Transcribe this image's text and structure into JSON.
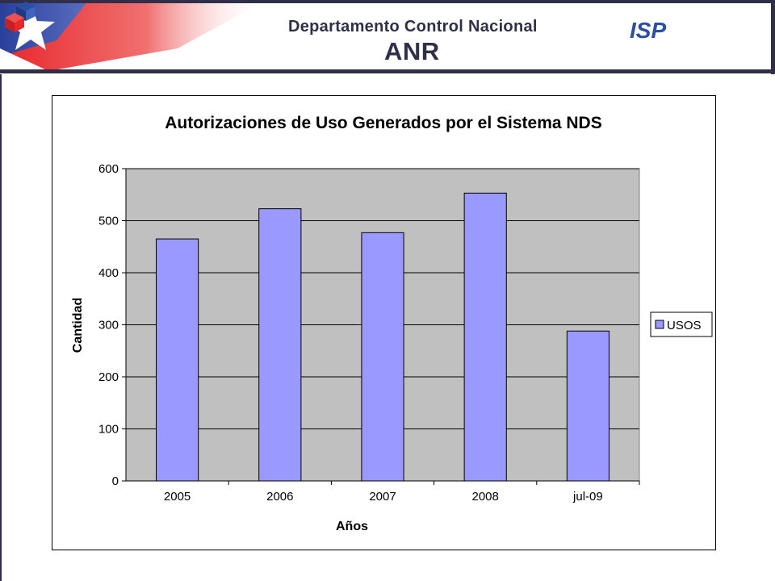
{
  "header": {
    "department": "Departamento  Control  Nacional",
    "subtitle": "ANR",
    "logo_text": "ISP",
    "colors": {
      "navy": "#2f2f4a",
      "red": "#e8262b",
      "blue": "#2a4fa3"
    }
  },
  "chart_data": {
    "type": "bar",
    "title": "Autorizaciones de Uso Generados por el Sistema NDS",
    "xlabel": "Años",
    "ylabel": "Cantidad",
    "categories": [
      "2005",
      "2006",
      "2007",
      "2008",
      "jul-09"
    ],
    "series": [
      {
        "name": "USOS",
        "values": [
          465,
          523,
          477,
          553,
          288
        ],
        "color": "#9999ff"
      }
    ],
    "ylim": [
      0,
      600
    ],
    "yticks": [
      0,
      100,
      200,
      300,
      400,
      500,
      600
    ],
    "grid": true,
    "plot_background": "#c0c0c0",
    "legend_position": "right"
  }
}
